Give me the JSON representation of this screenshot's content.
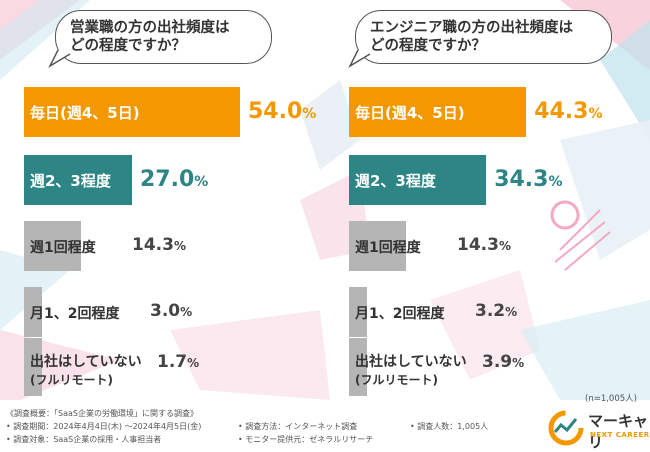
{
  "chart_data": [
    {
      "type": "bar",
      "title": "営業職の方の出社頻度はどの程度ですか？",
      "title_lines": [
        "営業職の方の出社頻度は",
        "どの程度ですか？"
      ],
      "categories": [
        "毎日(週4、5日)",
        "週2、3程度",
        "週1回程度",
        "月1、2回程度",
        "出社はしていない(フルリモート)"
      ],
      "category_lines": [
        [
          "毎日(週4、5日)"
        ],
        [
          "週2、3程度"
        ],
        [
          "週1回程度"
        ],
        [
          "月1、2回程度"
        ],
        [
          "出社はしていない",
          "(フルリモート)"
        ]
      ],
      "values": [
        54.0,
        27.0,
        14.3,
        3.0,
        1.7
      ],
      "value_labels": [
        "54.0%",
        "27.0%",
        "14.3%",
        "3.0%",
        "1.7%"
      ],
      "unit": "%",
      "xlim": [
        0,
        100
      ]
    },
    {
      "type": "bar",
      "title": "エンジニア職の方の出社頻度はどの程度ですか？",
      "title_lines": [
        "エンジニア職の方の出社頻度は",
        "どの程度ですか？"
      ],
      "categories": [
        "毎日(週4、5日)",
        "週2、3程度",
        "週1回程度",
        "月1、2回程度",
        "出社はしていない(フルリモート)"
      ],
      "category_lines": [
        [
          "毎日(週4、5日)"
        ],
        [
          "週2、3程度"
        ],
        [
          "週1回程度"
        ],
        [
          "月1、2回程度"
        ],
        [
          "出社はしていない",
          "(フルリモート)"
        ]
      ],
      "values": [
        44.3,
        34.3,
        14.3,
        3.2,
        3.9
      ],
      "value_labels": [
        "44.3%",
        "34.3%",
        "14.3%",
        "3.2%",
        "3.9%"
      ],
      "unit": "%",
      "xlim": [
        0,
        100
      ]
    }
  ],
  "sample_note": "(n=1,005人)",
  "footer": {
    "overview": "《調査概要：「SaaS企業の労働環境」に関する調査》",
    "period": "• 調査期間：2024年4月4日(木) ～2024年4月5日(金)",
    "target": "• 調査対象：SaaS企業の採用・人事担当者",
    "method": "• 調査方法：インターネット調査",
    "provider": "• モニター提供元：ゼネラルリサーチ",
    "count": "• 調査人数：1,005人"
  },
  "logo": {
    "name": "マーキャリ",
    "sub": "NEXT CAREER"
  },
  "colors": {
    "top": "#f39800",
    "second": "#2e8585",
    "rest": "#b5b5b5",
    "accent_pink": "#f3b8cb",
    "accent_blue": "#bfe3ee"
  }
}
